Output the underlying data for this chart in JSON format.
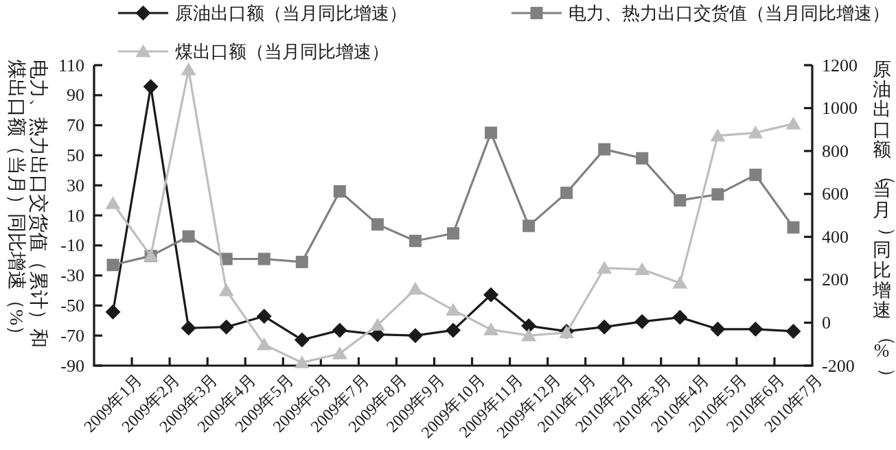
{
  "chart_data": {
    "type": "line",
    "categories": [
      "2009年1月",
      "2009年2月",
      "2009年3月",
      "2009年4月",
      "2009年5月",
      "2009年6月",
      "2009年7月",
      "2009年8月",
      "2009年9月",
      "2009年10月",
      "2009年11月",
      "2009年12月",
      "2010年1月",
      "2010年2月",
      "2010年3月",
      "2010年4月",
      "2010年5月",
      "2010年6月",
      "2010年7月"
    ],
    "ylabel": "电力、热力出口交货值（累计）和煤出口额（当月）同比增速（%）",
    "y2label": "原油出口额（当月）同比增速（%）",
    "ylim": [
      -90,
      110
    ],
    "yticks": [
      -90,
      -70,
      -50,
      -30,
      -10,
      10,
      30,
      50,
      70,
      90,
      110
    ],
    "y2lim": [
      -200,
      1200
    ],
    "y2ticks": [
      -200,
      0,
      200,
      400,
      600,
      800,
      1000,
      1200
    ],
    "legend": "top",
    "series": [
      {
        "name": "原油出口额（当月同比增速）",
        "color": "#1a1a1a",
        "axis": "y2",
        "marker": "diamond",
        "values": [
          50,
          1100,
          -25,
          -20,
          30,
          -80,
          -35,
          -55,
          -60,
          -35,
          130,
          -15,
          -40,
          -20,
          5,
          25,
          -30,
          -30,
          -40
        ]
      },
      {
        "name": "电力、热力出口交货值（当月同比增速）",
        "color": "#808080",
        "axis": "y",
        "marker": "square",
        "values": [
          -23,
          -17,
          -4,
          -19,
          -19,
          -21,
          26,
          4,
          -7,
          -2,
          65,
          3,
          25,
          54,
          48,
          20,
          24,
          37,
          2
        ]
      },
      {
        "name": "煤出口额（当月同比增速）",
        "color": "#bebebe",
        "axis": "y",
        "marker": "triangle",
        "values": [
          18,
          -17,
          107,
          -40,
          -76,
          -88,
          -82,
          -63,
          -39,
          -53,
          -66,
          -70,
          -68,
          -25,
          -26,
          -35,
          63,
          65,
          71
        ]
      }
    ]
  }
}
